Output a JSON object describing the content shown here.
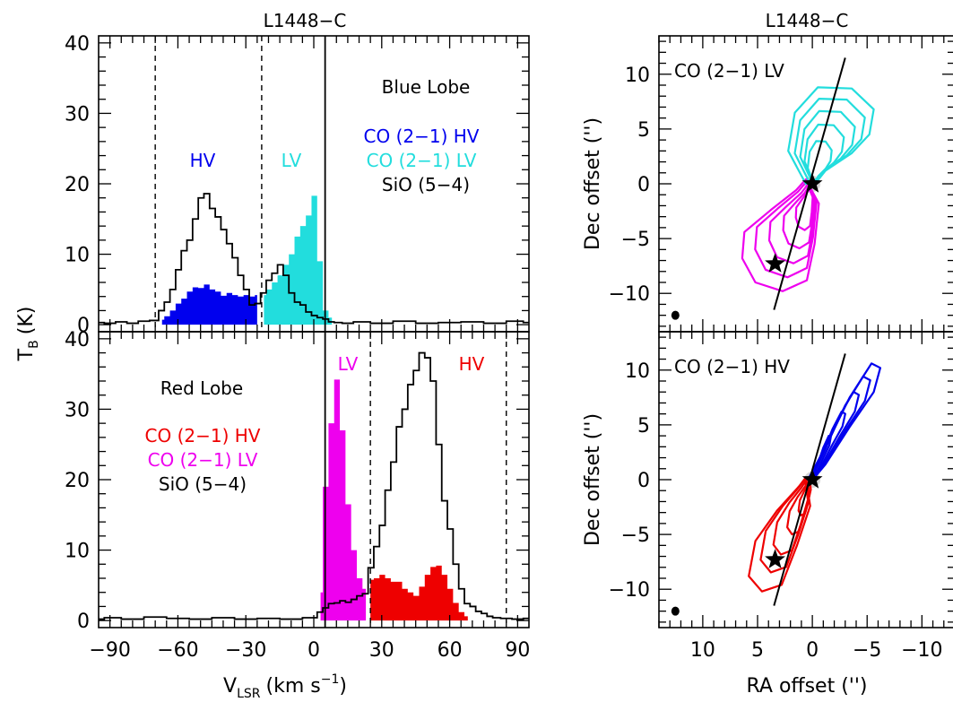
{
  "titles": {
    "left": "L1448−C",
    "right": "L1448−C"
  },
  "axes": {
    "y_label_main": "T",
    "y_label_sub": "B",
    "y_label_unit": "(K)",
    "x_label_main": "V",
    "x_label_sub": "LSR",
    "x_label_unit_pre": "(km s",
    "x_label_unit_sup": "−1",
    "x_label_unit_post": ")",
    "dec_label": "Dec offset ('')",
    "ra_label": "RA offset ('')"
  },
  "blue_panel": {
    "lobe_label": "Blue Lobe",
    "hv_region": "HV",
    "lv_region": "LV",
    "legend": [
      {
        "text": "CO (2−1) HV",
        "color": "#0000ee"
      },
      {
        "text": "CO (2−1) LV",
        "color": "#22dddd"
      },
      {
        "text": "SiO (5−4)",
        "color": "#000000"
      }
    ]
  },
  "red_panel": {
    "lobe_label": "Red Lobe",
    "hv_region": "HV",
    "lv_region": "LV",
    "legend": [
      {
        "text": "CO (2−1) HV",
        "color": "#ee0000"
      },
      {
        "text": "CO (2−1) LV",
        "color": "#ee00ee"
      },
      {
        "text": "SiO (5−4)",
        "color": "#000000"
      }
    ]
  },
  "map_panels": {
    "top_label": "CO (2−1) LV",
    "bottom_label": "CO (2−1) HV"
  },
  "colors": {
    "blue_hv": "#0000ee",
    "cyan_lv": "#22dddd",
    "red_hv": "#ee0000",
    "magenta_lv": "#ee00ee"
  },
  "chart_data": [
    {
      "type": "line",
      "panel": "blue-spectrum",
      "x_ticks": [
        -90,
        -60,
        -30,
        0,
        30,
        60,
        90
      ],
      "y_ticks": [
        0,
        10,
        20,
        30,
        40
      ],
      "xlim": [
        -95,
        95
      ],
      "ylim": [
        -1,
        41
      ],
      "vlines_dashed": [
        -70,
        -23
      ],
      "vline_solid": 5,
      "series": [
        {
          "name": "SiO (5−4)",
          "style": "step",
          "color": "#000000",
          "x": [
            -95,
            -90,
            -85,
            -80,
            -75,
            -70,
            -67,
            -65,
            -62,
            -60,
            -57,
            -55,
            -52,
            -50,
            -47,
            -45,
            -42,
            -40,
            -37,
            -35,
            -32,
            -30,
            -27,
            -25,
            -22,
            -20,
            -17,
            -15,
            -12,
            -10,
            -7,
            -5,
            -2,
            0,
            3,
            5,
            8,
            10,
            15,
            20,
            30,
            40,
            50,
            60,
            70,
            80,
            90,
            95
          ],
          "y": [
            0.3,
            0.2,
            0.4,
            0.2,
            0.5,
            0.6,
            2,
            3.2,
            5,
            7.8,
            10.5,
            12,
            15,
            18,
            18.6,
            16.5,
            15.3,
            13.5,
            11.5,
            9.5,
            7,
            5,
            2.8,
            3,
            4.5,
            6.3,
            7.3,
            8.5,
            7,
            4.5,
            3.2,
            2.8,
            1.8,
            1.3,
            1,
            0.8,
            0.4,
            0.3,
            0.2,
            0.4,
            0.2,
            0.5,
            0.2,
            0.3,
            0.4,
            0.2,
            0.5,
            0.3
          ]
        },
        {
          "name": "CO (2−1) HV",
          "style": "filled-step",
          "color": "#0000ee",
          "x": [
            -67,
            -65,
            -62,
            -60,
            -57,
            -55,
            -52,
            -50,
            -47,
            -45,
            -42,
            -40,
            -37,
            -35,
            -32,
            -30,
            -27,
            -25
          ],
          "y": [
            0.7,
            1.2,
            2,
            3,
            3.7,
            4.7,
            5.3,
            5.2,
            5.7,
            5,
            4.7,
            4.1,
            4.5,
            4.2,
            4,
            4.2,
            4,
            4.2
          ]
        },
        {
          "name": "CO (2−1) LV",
          "style": "filled-step",
          "color": "#22dddd",
          "x": [
            -22,
            -20,
            -17,
            -15,
            -12,
            -10,
            -7,
            -5,
            -2,
            0,
            3,
            5,
            8
          ],
          "y": [
            4.2,
            5,
            6,
            7,
            8.5,
            10,
            12.5,
            14,
            15.5,
            18.3,
            9,
            2,
            1
          ]
        }
      ]
    },
    {
      "type": "line",
      "panel": "red-spectrum",
      "x_ticks": [
        -90,
        -60,
        -30,
        0,
        30,
        60,
        90
      ],
      "y_ticks": [
        0,
        10,
        20,
        30,
        40
      ],
      "xlim": [
        -95,
        95
      ],
      "ylim": [
        -1,
        41
      ],
      "vlines_dashed": [
        25,
        85
      ],
      "vline_solid": 5,
      "series": [
        {
          "name": "SiO (5−4)",
          "style": "step",
          "color": "#000000",
          "x": [
            -95,
            -90,
            -80,
            -70,
            -60,
            -50,
            -40,
            -30,
            -20,
            -10,
            0,
            3,
            5,
            8,
            10,
            13,
            15,
            18,
            20,
            23,
            25,
            28,
            30,
            33,
            35,
            38,
            40,
            43,
            45,
            48,
            50,
            53,
            55,
            58,
            60,
            63,
            65,
            68,
            70,
            73,
            75,
            78,
            80,
            85,
            90,
            95
          ],
          "y": [
            0.2,
            0.4,
            0.2,
            0.5,
            0.3,
            0.2,
            0.4,
            0.2,
            0.3,
            0.2,
            0.4,
            1.2,
            1.8,
            2.4,
            2.5,
            2.8,
            2.6,
            3,
            3.5,
            3.8,
            7.5,
            10.5,
            13.5,
            18.5,
            22.5,
            27.5,
            30,
            33.5,
            35.5,
            38,
            37.3,
            34,
            25,
            17,
            13,
            8,
            4.5,
            2.4,
            2,
            1.3,
            1,
            0.6,
            0.4,
            0.3,
            0.2,
            0.3
          ]
        },
        {
          "name": "CO (2−1) LV",
          "style": "filled-step",
          "color": "#ee00ee",
          "x": [
            3,
            5,
            8,
            10,
            13,
            15,
            18,
            20,
            23
          ],
          "y": [
            4,
            19,
            28,
            34.2,
            27,
            16.5,
            10,
            6,
            4.5
          ]
        },
        {
          "name": "CO (2−1) HV",
          "style": "filled-step",
          "color": "#ee0000",
          "x": [
            25,
            28,
            30,
            33,
            35,
            38,
            40,
            43,
            45,
            48,
            50,
            53,
            55,
            58,
            60,
            63,
            65,
            68
          ],
          "y": [
            5.8,
            6,
            6.5,
            6,
            5.5,
            5.5,
            4.5,
            4,
            3.5,
            4.8,
            6.5,
            7.6,
            7.8,
            6.5,
            4.5,
            2.5,
            1.2,
            0.6
          ]
        }
      ]
    },
    {
      "type": "contour-map",
      "panel": "CO (2−1) LV map",
      "x_ticks": [
        10,
        5,
        0,
        -5,
        -10
      ],
      "y_ticks": [
        -10,
        -5,
        0,
        5,
        10
      ],
      "xlim": [
        14,
        -13
      ],
      "ylim": [
        -13.5,
        13.5
      ],
      "jet_axis": [
        [
          3.5,
          -11.5
        ],
        [
          -3,
          11.5
        ]
      ],
      "star_positions": [
        [
          0,
          0
        ],
        [
          3.4,
          -7.3
        ]
      ],
      "beam_position": [
        12.5,
        -12
      ]
    },
    {
      "type": "contour-map",
      "panel": "CO (2−1) HV map",
      "x_ticks": [
        10,
        5,
        0,
        -5,
        -10
      ],
      "y_ticks": [
        -10,
        -5,
        0,
        5,
        10
      ],
      "xlim": [
        14,
        -13
      ],
      "ylim": [
        -13.5,
        13.5
      ],
      "jet_axis": [
        [
          3.5,
          -11.5
        ],
        [
          -3,
          11.5
        ]
      ],
      "star_positions": [
        [
          0,
          0
        ],
        [
          3.4,
          -7.3
        ]
      ],
      "beam_position": [
        12.5,
        -12
      ]
    }
  ]
}
